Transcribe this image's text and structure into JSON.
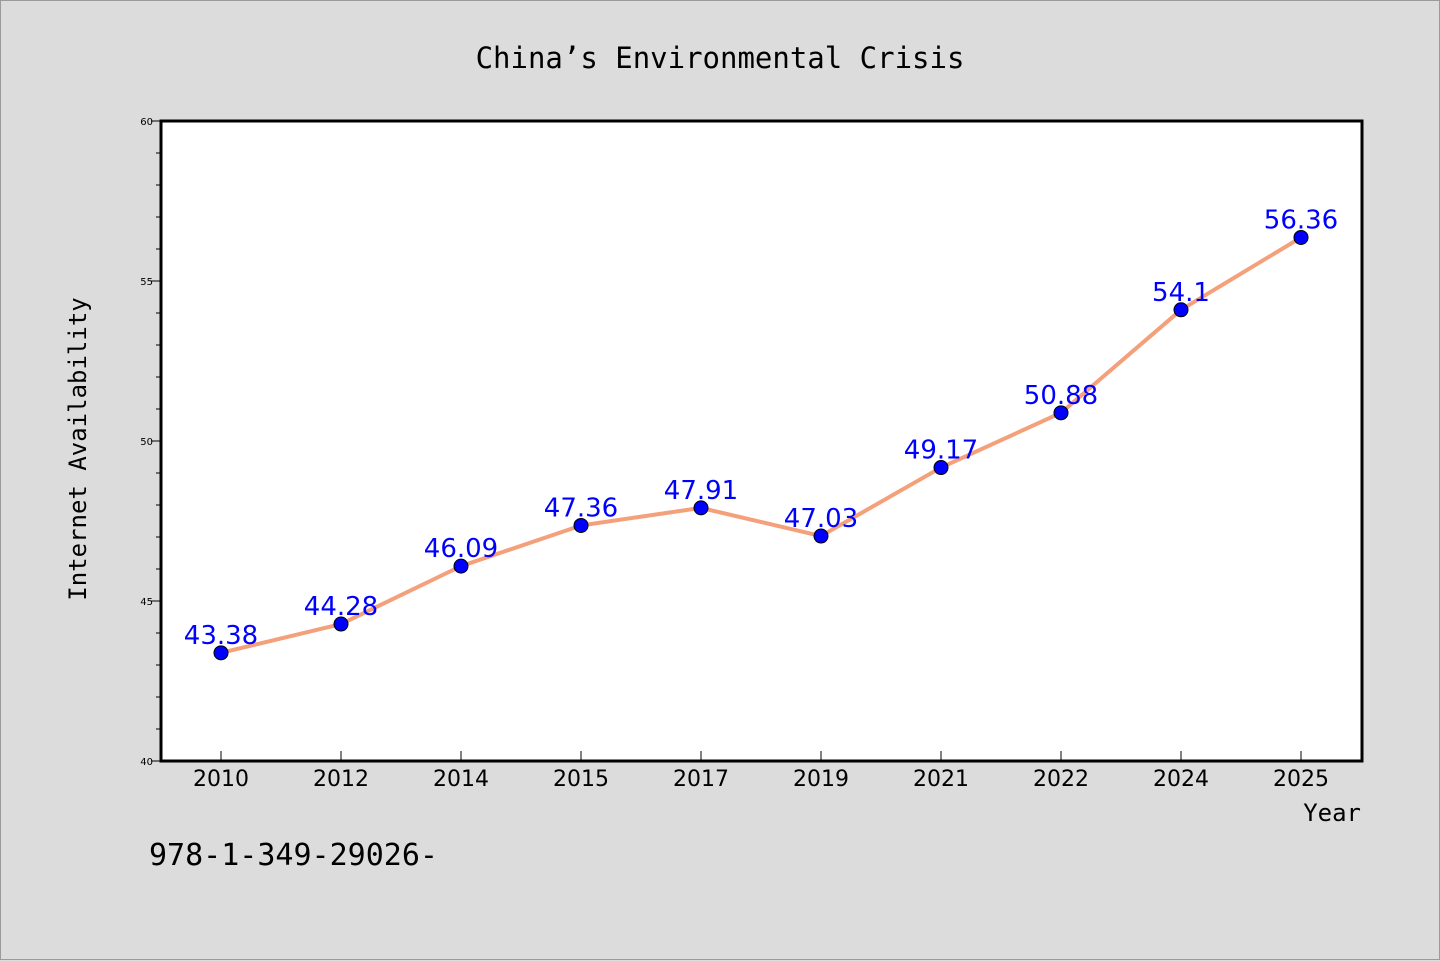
{
  "chart_data": {
    "type": "line",
    "title": "China’s Environmental Crisis",
    "xlabel": "Year",
    "ylabel": "Internet Availability",
    "categories": [
      "2010",
      "2012",
      "2014",
      "2015",
      "2017",
      "2019",
      "2021",
      "2022",
      "2024",
      "2025"
    ],
    "series": [
      {
        "values": [
          43.38,
          44.28,
          46.09,
          47.36,
          47.91,
          47.03,
          49.17,
          50.88,
          54.1,
          56.36
        ],
        "data_labels": [
          "43.38",
          "44.28",
          "46.09",
          "47.36",
          "47.91",
          "47.03",
          "49.17",
          "50.88",
          "54.1",
          "56.36"
        ]
      }
    ],
    "ylim": [
      40,
      60
    ],
    "y_ticks": [
      40,
      45,
      50,
      55,
      60
    ],
    "y_tick_labels": [
      "40",
      "45",
      "50",
      "55",
      "60"
    ],
    "grid": false,
    "colors": {
      "line": "#f4a07a",
      "marker": "#0000ff",
      "data_label": "#0000ff",
      "background": "#dcdcdc",
      "plot_background": "#ffffff"
    }
  },
  "footer_code": "978-1-349-29026-"
}
